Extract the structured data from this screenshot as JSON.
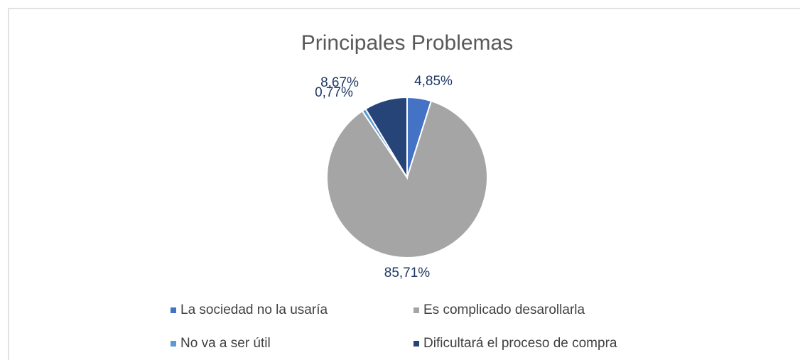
{
  "chart_data": {
    "type": "pie",
    "title": "Principales Problemas",
    "categories": [
      "La sociedad no la usaría",
      "Es complicado desarollarla",
      "No va a ser útil",
      "Dificultará el proceso de compra"
    ],
    "values": [
      4.85,
      85.71,
      0.77,
      8.67
    ],
    "value_labels": [
      "4,85%",
      "85,71%",
      "0,77%",
      "8,67%"
    ],
    "colors": [
      "#4472c4",
      "#a5a5a5",
      "#5b9bd5",
      "#264478"
    ]
  }
}
